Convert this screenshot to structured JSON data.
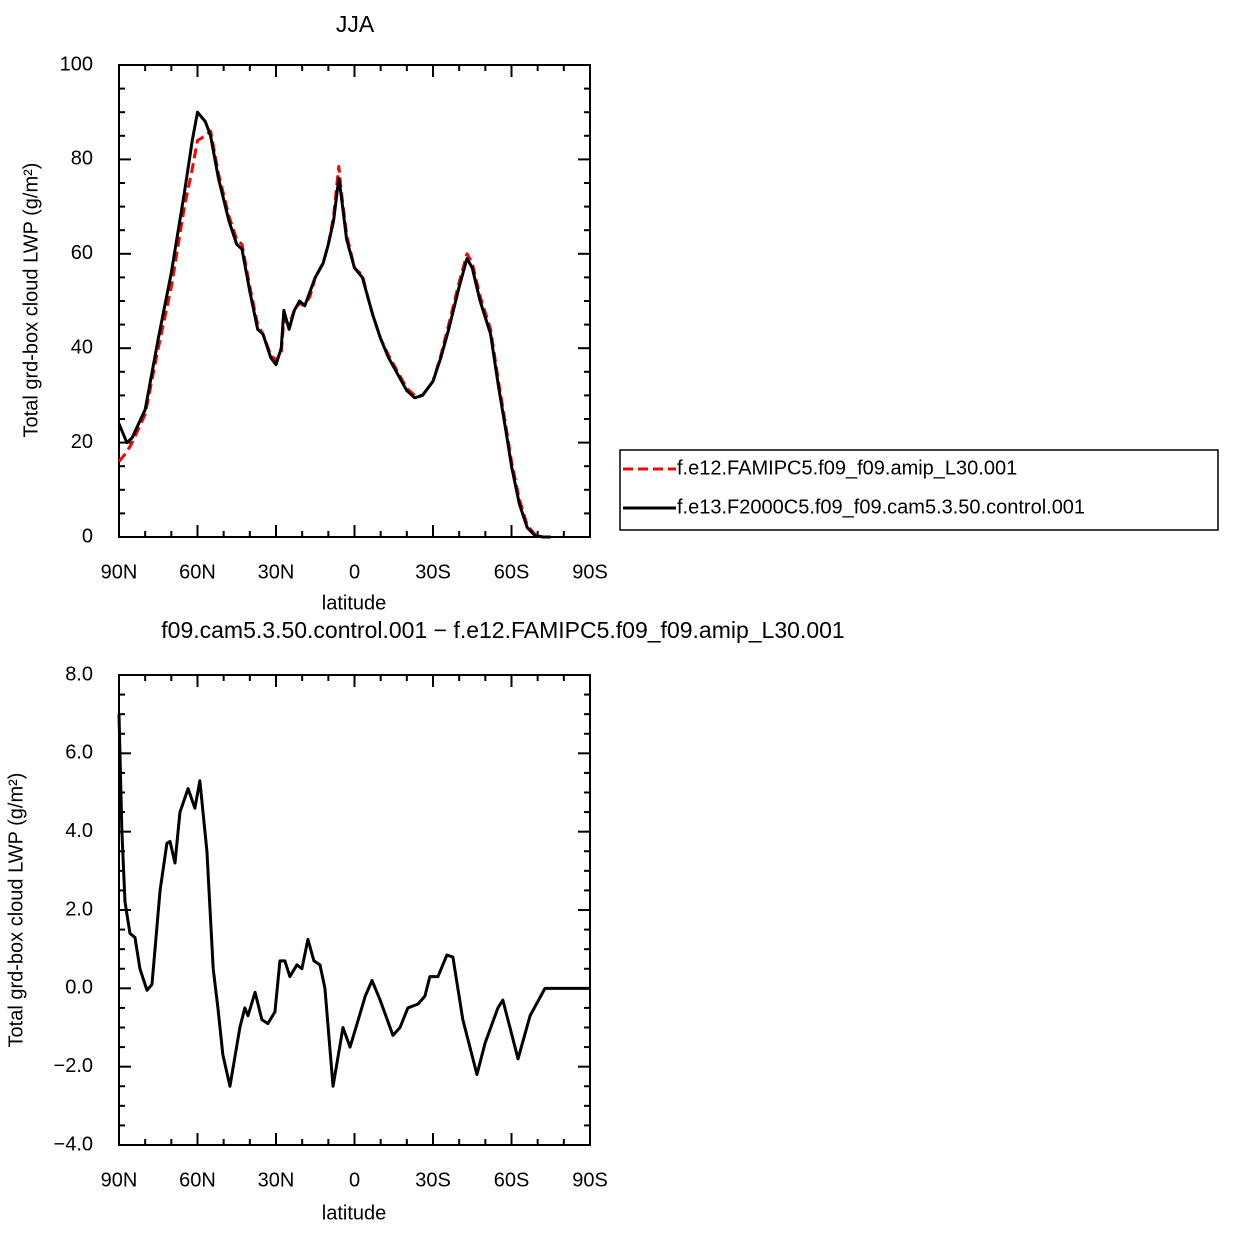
{
  "chart_data": [
    {
      "type": "line",
      "title": "JJA",
      "xlabel": "latitude",
      "ylabel": "Total grd-box cloud LWP (g/m²)",
      "xlim": [
        90,
        -90
      ],
      "xticks": [
        {
          "value": 90,
          "label": "90N"
        },
        {
          "value": 60,
          "label": "60N"
        },
        {
          "value": 30,
          "label": "30N"
        },
        0,
        {
          "value": -30,
          "label": "30S"
        },
        {
          "value": -60,
          "label": "60S"
        },
        {
          "value": -90,
          "label": "90S"
        }
      ],
      "ylim": [
        0,
        100
      ],
      "yticks": [
        0,
        20,
        40,
        60,
        80,
        100
      ],
      "legend": "right",
      "x": [
        90,
        87,
        85,
        80,
        75,
        70,
        65,
        62,
        60,
        57,
        55,
        52,
        48,
        45,
        43,
        40,
        37,
        35,
        32,
        30,
        28,
        27,
        25,
        23,
        21,
        19,
        17,
        15,
        12,
        10,
        8,
        6,
        5,
        3,
        0,
        -3,
        -5,
        -7,
        -10,
        -13,
        -16,
        -20,
        -23,
        -26,
        -30,
        -33,
        -36,
        -40,
        -43,
        -45,
        -48,
        -52,
        -55,
        -58,
        -60,
        -63,
        -66,
        -69,
        -72,
        -75
      ],
      "series": [
        {
          "name": "f.e12.FAMIPC5.f09_f09.amip_L30.001",
          "color": "#ff0000",
          "style": "dashed",
          "values": [
            16,
            18,
            20,
            26,
            40,
            53,
            70,
            78,
            84,
            85,
            86,
            77,
            68,
            63,
            62,
            53,
            45,
            43,
            38.5,
            37.5,
            39,
            46,
            45,
            48,
            49.5,
            49,
            51,
            55,
            58,
            62,
            68,
            78.5,
            73,
            64,
            57,
            55.5,
            51,
            47,
            42,
            38.5,
            35.5,
            31.5,
            30,
            30,
            33,
            38.5,
            45,
            54,
            60,
            58,
            51,
            44,
            33,
            23,
            16,
            8,
            2.5,
            0.5,
            0,
            0
          ]
        },
        {
          "name": "f.e13.F2000C5.f09_f09.cam5.3.50.control.001",
          "color": "#000000",
          "style": "solid",
          "values": [
            24,
            20,
            21,
            27,
            42,
            56,
            73,
            84,
            90,
            88,
            85,
            76,
            67,
            62,
            61,
            52,
            44,
            43,
            38,
            36.5,
            40,
            48,
            44,
            48,
            50,
            49,
            52,
            55,
            58,
            62,
            67,
            76,
            72,
            63,
            57,
            55,
            51,
            47,
            42,
            38,
            35,
            31,
            29.5,
            30,
            33,
            38,
            44,
            53,
            59,
            57,
            50,
            43,
            32,
            22,
            15,
            7,
            2,
            0.3,
            0,
            0
          ]
        }
      ]
    },
    {
      "type": "line",
      "title": "f09.cam5.3.50.control.001 − f.e12.FAMIPC5.f09_f09.amip_L30.001",
      "xlabel": "latitude",
      "ylabel": "Total grd-box cloud LWP (g/m²)",
      "xlim": [
        90,
        -90
      ],
      "xticks": [
        {
          "value": 90,
          "label": "90N"
        },
        {
          "value": 60,
          "label": "60N"
        },
        {
          "value": 30,
          "label": "30N"
        },
        0,
        {
          "value": -30,
          "label": "30S"
        },
        {
          "value": -60,
          "label": "60S"
        },
        {
          "value": -90,
          "label": "90S"
        }
      ],
      "ylim": [
        -4,
        8
      ],
      "yticks": [
        {
          "value": -4,
          "label": "−4.0"
        },
        {
          "value": -2,
          "label": "−2.0"
        },
        {
          "value": 0,
          "label": "0.0"
        },
        {
          "value": 2,
          "label": "2.0"
        },
        {
          "value": 4,
          "label": "4.0"
        },
        {
          "value": 6,
          "label": "6.0"
        },
        {
          "value": 8,
          "label": "8.0"
        }
      ],
      "color": "#000000",
      "x": [
        90,
        88.9,
        87.7,
        85.8,
        83.9,
        82,
        79.3,
        77.4,
        74.3,
        71.7,
        70.5,
        68.6,
        66.7,
        63.6,
        61,
        59.1,
        56.4,
        54,
        52.2,
        50.3,
        47.6,
        43.8,
        41.9,
        40.7,
        38,
        35.4,
        33.1,
        30.4,
        28.5,
        26.6,
        24.7,
        22,
        20.1,
        17.8,
        15.5,
        13.2,
        11.3,
        8.2,
        4.4,
        1.7,
        -1,
        -4.1,
        -6.7,
        -9.8,
        -14.7,
        -17.4,
        -20.4,
        -24.3,
        -26.9,
        -28.8,
        -31.9,
        -35.3,
        -37.6,
        -41.4,
        -46.8,
        -49.9,
        -54.8,
        -56.7,
        -62.5,
        -67.1,
        -72.8,
        -90
      ],
      "values": [
        7,
        4,
        2.2,
        1.4,
        1.3,
        0.5,
        -0.05,
        0.1,
        2.5,
        3.7,
        3.75,
        3.2,
        4.5,
        5.1,
        4.6,
        5.3,
        3.5,
        0.5,
        -0.5,
        -1.7,
        -2.5,
        -1.0,
        -0.5,
        -0.7,
        -0.1,
        -0.8,
        -0.9,
        -0.6,
        0.7,
        0.7,
        0.3,
        0.6,
        0.5,
        1.25,
        0.7,
        0.6,
        0,
        -2.5,
        -1.0,
        -1.5,
        -0.9,
        -0.2,
        0.2,
        -0.3,
        -1.2,
        -1.0,
        -0.5,
        -0.4,
        -0.2,
        0.3,
        0.3,
        0.85,
        0.8,
        -0.8,
        -2.2,
        -1.4,
        -0.5,
        -0.3,
        -1.8,
        -0.7,
        0,
        0
      ]
    }
  ]
}
